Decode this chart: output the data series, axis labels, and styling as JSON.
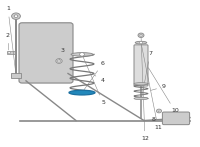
{
  "bg_color": "#ffffff",
  "line_color": "#888888",
  "part_color": "#cccccc",
  "highlight_color": "#1a6fa0",
  "highlight_fill": "#2288bb",
  "label_color": "#333333",
  "label_fs": 4.5,
  "spring_color": "#777777",
  "shock_fill": "#dddddd"
}
